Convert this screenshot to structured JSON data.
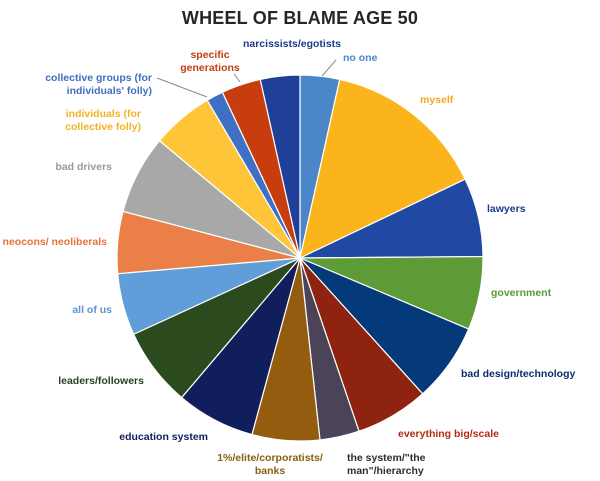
{
  "title": "WHEEL OF BLAME AGE 50",
  "chart_data": {
    "type": "pie",
    "title": "WHEEL OF BLAME AGE 50",
    "start_angle_deg": 0,
    "direction": "clockwise",
    "legend": "none",
    "slices": [
      {
        "label": "no one",
        "value": 3.5,
        "color": "#4a86c8",
        "label_color": "#4a86c8"
      },
      {
        "label": "myself",
        "value": 14.5,
        "color": "#fbb41b",
        "label_color": "#f3a71c"
      },
      {
        "label": "lawyers",
        "value": 7.0,
        "color": "#1f49a2",
        "label_color": "#1f3a93"
      },
      {
        "label": "government",
        "value": 6.5,
        "color": "#5d9b36",
        "label_color": "#5a9a32"
      },
      {
        "label": "bad design/technology",
        "value": 7.0,
        "color": "#053a7a",
        "label_color": "#0b2c6c"
      },
      {
        "label": "everything big/scale",
        "value": 6.5,
        "color": "#8e2410",
        "label_color": "#b22b13"
      },
      {
        "label": "the system/\"the man\"/hierarchy",
        "value": 3.5,
        "color": "#4b4357",
        "label_color": "#2e2e2e"
      },
      {
        "label": "1%/elite/corporatists/ banks",
        "value": 6.0,
        "color": "#935c0e",
        "label_color": "#8a6010"
      },
      {
        "label": "education system",
        "value": 7.0,
        "color": "#111e5c",
        "label_color": "#111e5c"
      },
      {
        "label": "leaders/followers",
        "value": 7.0,
        "color": "#2b4b1f",
        "label_color": "#27431d"
      },
      {
        "label": "all of us",
        "value": 5.5,
        "color": "#5f9ed9",
        "label_color": "#5b95d2"
      },
      {
        "label": "neocons/ neoliberals",
        "value": 5.5,
        "color": "#ea8048",
        "label_color": "#e7733a"
      },
      {
        "label": "bad drivers",
        "value": 7.0,
        "color": "#a8a8a8",
        "label_color": "#9a9a9a"
      },
      {
        "label": "individuals (for collective folly)",
        "value": 5.5,
        "color": "#fdc537",
        "label_color": "#f2b323"
      },
      {
        "label": "collective groups (for individuals' folly)",
        "value": 1.5,
        "color": "#4070c4",
        "label_color": "#3f6fbe"
      },
      {
        "label": "specific generations",
        "value": 3.5,
        "color": "#c83d0e",
        "label_color": "#c23d12"
      },
      {
        "label": "narcissists/egotists",
        "value": 3.5,
        "color": "#203f98",
        "label_color": "#1d3a8a"
      }
    ]
  }
}
